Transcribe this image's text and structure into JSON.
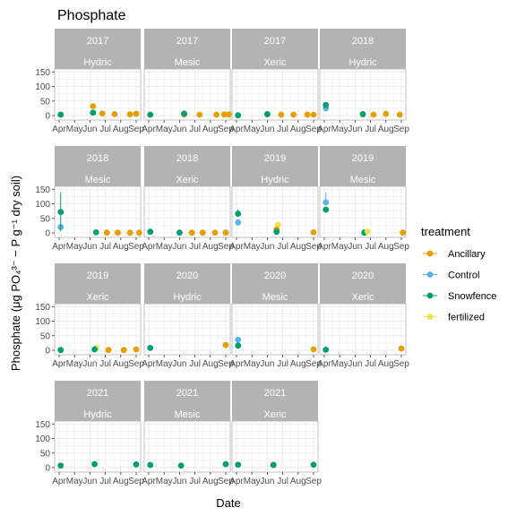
{
  "chart_data": {
    "type": "scatter",
    "title": "Phosphate",
    "xlabel": "Date",
    "ylabel": "Phosphate (μg PO₄³⁻ − P g⁻¹ dry soil)",
    "ylim": [
      0,
      160
    ],
    "yticks": [
      0,
      50,
      100,
      150
    ],
    "xlim_months": [
      4,
      9
    ],
    "xticks": [
      "Apr",
      "May",
      "Jun",
      "Jul",
      "Aug",
      "Sep"
    ],
    "grid": true,
    "legend": {
      "title": "treatment",
      "placement": "right",
      "entries": [
        {
          "name": "Ancillary",
          "color": "#E69F00"
        },
        {
          "name": "Control",
          "color": "#56B4E9"
        },
        {
          "name": "Snowfence",
          "color": "#009E73"
        },
        {
          "name": "fertilized",
          "color": "#F0E442"
        }
      ]
    },
    "panels": [
      {
        "year": "2017",
        "site": "Hydric",
        "points": [
          {
            "t": "Snowfence",
            "m": 4.1,
            "y": 3,
            "lo": 2,
            "hi": 4
          },
          {
            "t": "Ancillary",
            "m": 6.2,
            "y": 32,
            "lo": 26,
            "hi": 38
          },
          {
            "t": "Snowfence",
            "m": 6.2,
            "y": 10,
            "lo": 6,
            "hi": 14
          },
          {
            "t": "Ancillary",
            "m": 6.8,
            "y": 7
          },
          {
            "t": "Ancillary",
            "m": 7.6,
            "y": 5
          },
          {
            "t": "Ancillary",
            "m": 8.6,
            "y": 4
          },
          {
            "t": "Ancillary",
            "m": 9.0,
            "y": 6
          }
        ]
      },
      {
        "year": "2017",
        "site": "Mesic",
        "points": [
          {
            "t": "Snowfence",
            "m": 4.1,
            "y": 3
          },
          {
            "t": "Ancillary",
            "m": 6.3,
            "y": 4
          },
          {
            "t": "Snowfence",
            "m": 6.3,
            "y": 7
          },
          {
            "t": "Ancillary",
            "m": 7.3,
            "y": 3
          },
          {
            "t": "Ancillary",
            "m": 8.4,
            "y": 3
          },
          {
            "t": "Ancillary",
            "m": 8.9,
            "y": 4
          },
          {
            "t": "Ancillary",
            "m": 9.2,
            "y": 4
          }
        ]
      },
      {
        "year": "2017",
        "site": "Xeric",
        "points": [
          {
            "t": "Snowfence",
            "m": 4.1,
            "y": 1
          },
          {
            "t": "Ancillary",
            "m": 6.0,
            "y": 4
          },
          {
            "t": "Snowfence",
            "m": 6.0,
            "y": 5
          },
          {
            "t": "Ancillary",
            "m": 6.9,
            "y": 3
          },
          {
            "t": "Ancillary",
            "m": 7.7,
            "y": 3
          },
          {
            "t": "Ancillary",
            "m": 8.6,
            "y": 3
          },
          {
            "t": "Ancillary",
            "m": 9.0,
            "y": 3
          }
        ]
      },
      {
        "year": "2018",
        "site": "Hydric",
        "points": [
          {
            "t": "Control",
            "m": 4.1,
            "y": 25,
            "lo": 18,
            "hi": 32
          },
          {
            "t": "Snowfence",
            "m": 4.1,
            "y": 36,
            "lo": 30,
            "hi": 45
          },
          {
            "t": "Ancillary",
            "m": 6.5,
            "y": 4
          },
          {
            "t": "Snowfence",
            "m": 6.5,
            "y": 5
          },
          {
            "t": "Ancillary",
            "m": 7.2,
            "y": 3
          },
          {
            "t": "Ancillary",
            "m": 8.0,
            "y": 6
          },
          {
            "t": "Ancillary",
            "m": 8.9,
            "y": 3
          }
        ]
      },
      {
        "year": "2018",
        "site": "Mesic",
        "points": [
          {
            "t": "Control",
            "m": 4.1,
            "y": 20,
            "lo": 12,
            "hi": 28
          },
          {
            "t": "Snowfence",
            "m": 4.1,
            "y": 72,
            "lo": 5,
            "hi": 140
          },
          {
            "t": "Snowfence",
            "m": 6.4,
            "y": 2
          },
          {
            "t": "Ancillary",
            "m": 7.1,
            "y": 1
          },
          {
            "t": "Ancillary",
            "m": 7.8,
            "y": 1
          },
          {
            "t": "Ancillary",
            "m": 8.6,
            "y": 1
          },
          {
            "t": "Ancillary",
            "m": 9.2,
            "y": 1
          }
        ]
      },
      {
        "year": "2018",
        "site": "Xeric",
        "points": [
          {
            "t": "Snowfence",
            "m": 4.1,
            "y": 4
          },
          {
            "t": "Snowfence",
            "m": 6.0,
            "y": 1
          },
          {
            "t": "Ancillary",
            "m": 6.8,
            "y": 1
          },
          {
            "t": "Ancillary",
            "m": 7.5,
            "y": 1
          },
          {
            "t": "Ancillary",
            "m": 8.3,
            "y": 1
          },
          {
            "t": "Ancillary",
            "m": 9.0,
            "y": 1
          }
        ]
      },
      {
        "year": "2019",
        "site": "Hydric",
        "points": [
          {
            "t": "Control",
            "m": 4.1,
            "y": 36,
            "lo": 28,
            "hi": 44
          },
          {
            "t": "Snowfence",
            "m": 4.1,
            "y": 66,
            "lo": 55,
            "hi": 80
          },
          {
            "t": "fertilized",
            "m": 6.7,
            "y": 28,
            "lo": 20,
            "hi": 36
          },
          {
            "t": "Ancillary",
            "m": 6.6,
            "y": 12
          },
          {
            "t": "Snowfence",
            "m": 6.6,
            "y": 4
          },
          {
            "t": "Ancillary",
            "m": 9.0,
            "y": 2
          }
        ]
      },
      {
        "year": "2019",
        "site": "Mesic",
        "points": [
          {
            "t": "Control",
            "m": 4.1,
            "y": 105,
            "lo": 95,
            "hi": 140
          },
          {
            "t": "Snowfence",
            "m": 4.1,
            "y": 80,
            "lo": 70,
            "hi": 90
          },
          {
            "t": "Control",
            "m": 6.6,
            "y": 2
          },
          {
            "t": "Snowfence",
            "m": 6.6,
            "y": 1
          },
          {
            "t": "fertilized",
            "m": 6.8,
            "y": 5
          },
          {
            "t": "Ancillary",
            "m": 9.1,
            "y": 1
          }
        ]
      },
      {
        "year": "2019",
        "site": "Xeric",
        "points": [
          {
            "t": "Snowfence",
            "m": 4.1,
            "y": 1
          },
          {
            "t": "fertilized",
            "m": 6.4,
            "y": 8
          },
          {
            "t": "Snowfence",
            "m": 6.3,
            "y": 3
          },
          {
            "t": "Ancillary",
            "m": 7.2,
            "y": 1
          },
          {
            "t": "Ancillary",
            "m": 8.2,
            "y": 1
          },
          {
            "t": "Ancillary",
            "m": 9.0,
            "y": 3
          }
        ]
      },
      {
        "year": "2020",
        "site": "Hydric",
        "points": [
          {
            "t": "Snowfence",
            "m": 4.1,
            "y": 8
          },
          {
            "t": "Ancillary",
            "m": 9.0,
            "y": 18
          }
        ]
      },
      {
        "year": "2020",
        "site": "Mesic",
        "points": [
          {
            "t": "Control",
            "m": 4.1,
            "y": 36
          },
          {
            "t": "Snowfence",
            "m": 4.1,
            "y": 16
          },
          {
            "t": "Ancillary",
            "m": 9.0,
            "y": 3
          }
        ]
      },
      {
        "year": "2020",
        "site": "Xeric",
        "points": [
          {
            "t": "Snowfence",
            "m": 4.1,
            "y": 2
          },
          {
            "t": "Ancillary",
            "m": 9.0,
            "y": 6
          }
        ]
      },
      {
        "year": "2021",
        "site": "Hydric",
        "points": [
          {
            "t": "Snowfence",
            "m": 4.1,
            "y": 7
          },
          {
            "t": "Snowfence",
            "m": 6.3,
            "y": 12
          },
          {
            "t": "Snowfence",
            "m": 9.0,
            "y": 11
          }
        ]
      },
      {
        "year": "2021",
        "site": "Mesic",
        "points": [
          {
            "t": "Snowfence",
            "m": 4.1,
            "y": 9
          },
          {
            "t": "Snowfence",
            "m": 6.1,
            "y": 7
          },
          {
            "t": "Snowfence",
            "m": 9.0,
            "y": 12
          }
        ]
      },
      {
        "year": "2021",
        "site": "Xeric",
        "points": [
          {
            "t": "Snowfence",
            "m": 4.1,
            "y": 10
          },
          {
            "t": "Ancillary",
            "m": 6.4,
            "y": 9
          },
          {
            "t": "Snowfence",
            "m": 6.4,
            "y": 9
          },
          {
            "t": "Snowfence",
            "m": 9.0,
            "y": 10
          }
        ]
      }
    ]
  }
}
